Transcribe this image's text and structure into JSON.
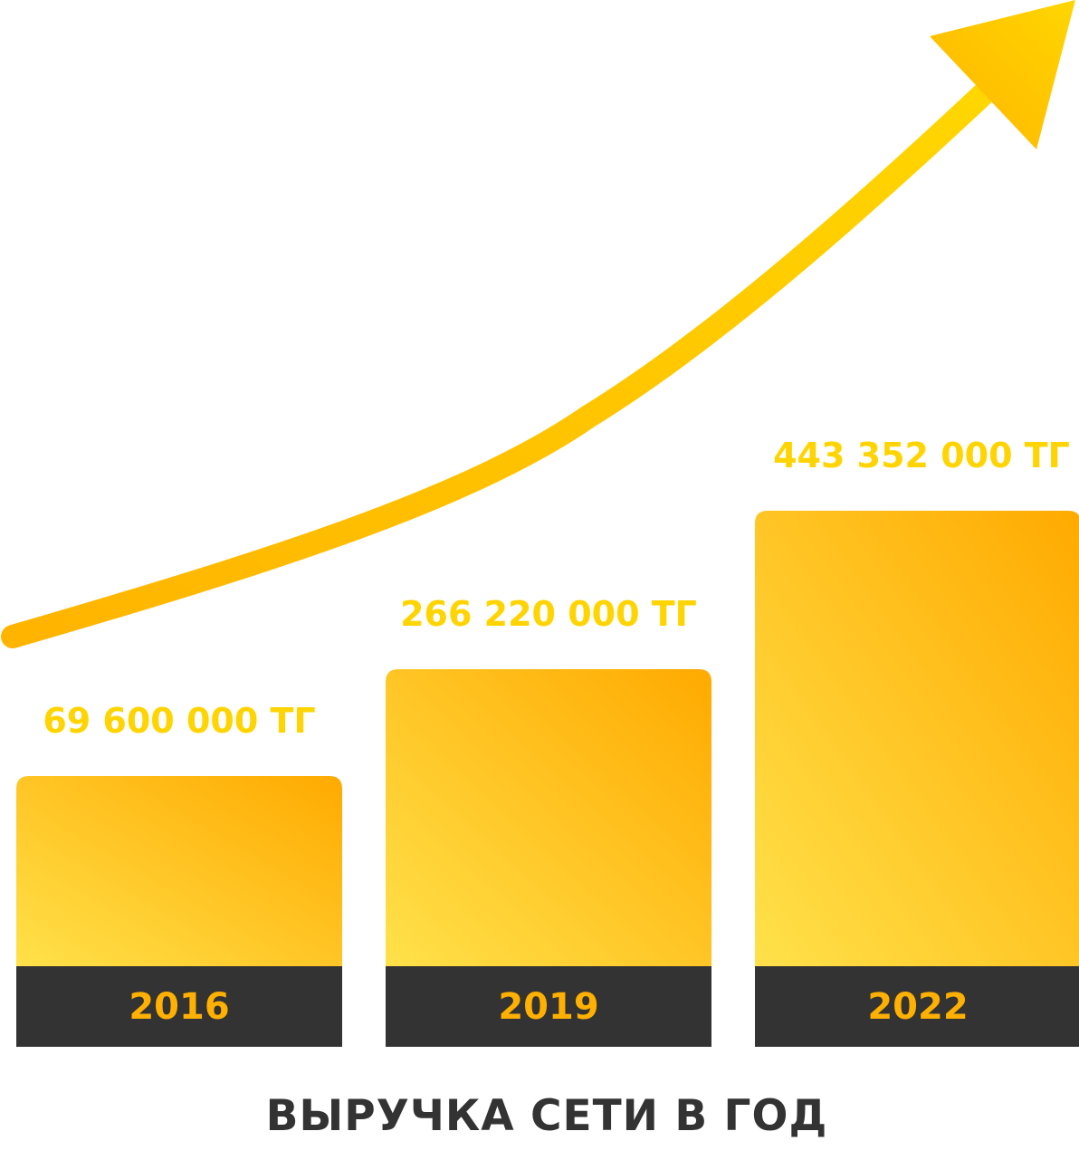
{
  "chart_data": {
    "type": "bar",
    "title": "ВЫРУЧКА СЕТИ В ГОД",
    "categories": [
      "2016",
      "2019",
      "2022"
    ],
    "values": [
      69600000,
      266220000,
      443352000
    ],
    "value_labels": [
      "69 600 000 ТГ",
      "266 220 000 ТГ",
      "443 352 000 ТГ"
    ],
    "trend_arrow": true
  },
  "colors": {
    "bar_gradient_top": "#FFAA00",
    "bar_gradient_bottom": "#FFE14A",
    "value_label": "#FFD400",
    "year_band": "#333333",
    "year_text": "#FFB000",
    "title": "#333333",
    "arrow_start": "#FFB400",
    "arrow_end": "#FFD600"
  }
}
